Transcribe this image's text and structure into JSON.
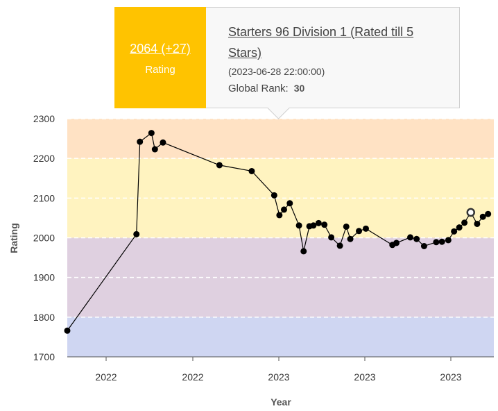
{
  "chart_data": {
    "type": "line",
    "xlabel": "Year",
    "ylabel": "Rating",
    "ylim": [
      1700,
      2300
    ],
    "yticks": [
      1700,
      1800,
      1900,
      2000,
      2100,
      2200,
      2300
    ],
    "xtick_labels": [
      "2022",
      "2022",
      "2023",
      "2023",
      "2023"
    ],
    "bands": [
      {
        "from": 1700,
        "to": 1800,
        "color": "#cfd6f2"
      },
      {
        "from": 1800,
        "to": 2000,
        "color": "#dfd0e0"
      },
      {
        "from": 2000,
        "to": 2200,
        "color": "#fff3c0"
      },
      {
        "from": 2200,
        "to": 2300,
        "color": "#ffe2c4"
      }
    ],
    "series": [
      {
        "x": [
          0.0,
          12.0,
          12.6,
          14.6,
          15.2,
          16.6,
          26.4,
          32.0,
          35.9,
          36.8,
          37.6,
          38.6,
          40.2,
          41.0,
          42.0,
          42.7,
          43.6,
          44.6,
          45.8,
          47.3,
          48.4,
          49.1,
          50.6,
          51.8,
          56.4,
          57.1,
          59.5,
          60.6,
          61.9,
          64.0,
          65.0,
          66.1,
          67.1,
          68.0,
          68.9,
          70.0,
          71.1,
          72.1,
          73.0
        ],
        "y": [
          1766,
          2009,
          2242,
          2264,
          2223,
          2240,
          2183,
          2168,
          2107,
          2057,
          2071,
          2087,
          2031,
          1966,
          2029,
          2031,
          2037,
          2033,
          2001,
          1980,
          2028,
          1997,
          2017,
          2023,
          1982,
          1987,
          2001,
          1997,
          1979,
          1989,
          1990,
          1994,
          2016,
          2026,
          2038,
          2064,
          2035,
          2053,
          2060
        ]
      }
    ],
    "highlight_index": 35
  },
  "tooltip": {
    "rating": "2064 (+27)",
    "rating_label": "Rating",
    "contest": "Starters 96 Division 1 (Rated till 5 Stars)",
    "date": "(2023-06-28 22:00:00)",
    "rank_label": "Global Rank:",
    "rank_value": "30"
  }
}
